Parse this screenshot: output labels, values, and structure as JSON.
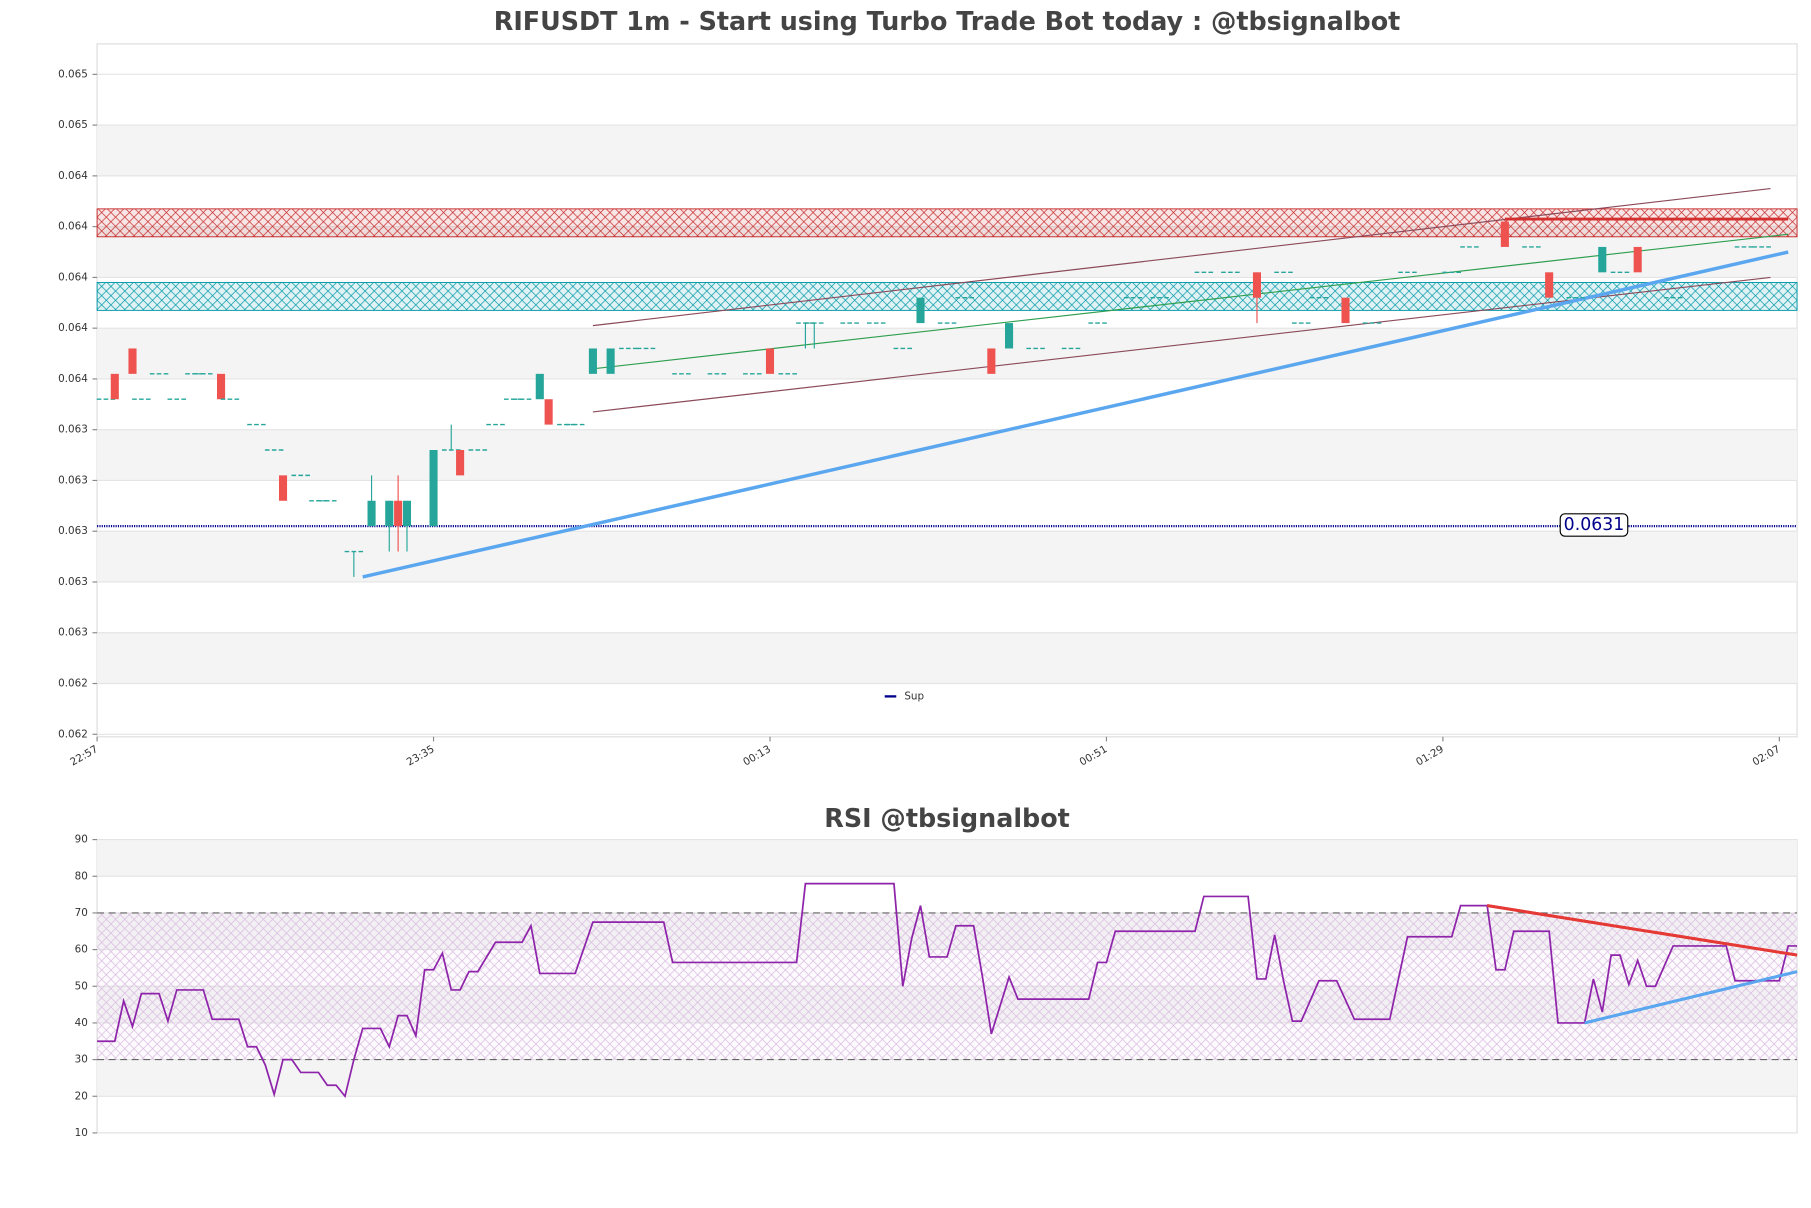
{
  "chart_data": [
    {
      "type": "candlestick",
      "title": "RIFUSDT 1m - Start using Turbo Trade Bot today : @tbsignalbot",
      "x": [
        1,
        2,
        4,
        5,
        7,
        9,
        11,
        12,
        14,
        15,
        18,
        20,
        21,
        23,
        25,
        26,
        29,
        31,
        33,
        34,
        35,
        38,
        40,
        41,
        43,
        45,
        47,
        48,
        50,
        51,
        53,
        54,
        56,
        58,
        60,
        62,
        66,
        70,
        74,
        76,
        78,
        80,
        81,
        85,
        88,
        91,
        93,
        96,
        98,
        101,
        103,
        106,
        110,
        113,
        117,
        120,
        125,
        128,
        131,
        134,
        136,
        138,
        141,
        144,
        148,
        153,
        155,
        159,
        162,
        164,
        167,
        170,
        172,
        174,
        178,
        186,
        188
      ],
      "open": [
        0.0636,
        0.0637,
        0.0638,
        0.0636,
        0.0637,
        0.0636,
        0.0637,
        0.0637,
        0.0637,
        0.0636,
        0.0635,
        0.0634,
        0.0633,
        0.0633,
        0.0632,
        0.0632,
        0.063,
        0.0631,
        0.0631,
        0.0632,
        0.0631,
        0.0631,
        0.0634,
        0.0634,
        0.0634,
        0.0635,
        0.0636,
        0.0636,
        0.0636,
        0.0636,
        0.0635,
        0.0635,
        0.0637,
        0.0637,
        0.0638,
        0.0638,
        0.0637,
        0.0637,
        0.0637,
        0.0638,
        0.0637,
        0.0639,
        0.0639,
        0.0639,
        0.0639,
        0.0638,
        0.0639,
        0.0639,
        0.064,
        0.0638,
        0.0638,
        0.0638,
        0.0638,
        0.0639,
        0.064,
        0.064,
        0.0641,
        0.0641,
        0.0641,
        0.0641,
        0.0639,
        0.064,
        0.064,
        0.0639,
        0.0641,
        0.0641,
        0.0642,
        0.0643,
        0.0642,
        0.0641,
        0.064,
        0.0641,
        0.0641,
        0.0642,
        0.064,
        0.0642,
        0.0642
      ],
      "high": [
        0.0636,
        0.0637,
        0.0638,
        0.0636,
        0.0637,
        0.0636,
        0.0637,
        0.0637,
        0.0637,
        0.0636,
        0.0635,
        0.0634,
        0.0633,
        0.0633,
        0.0632,
        0.0632,
        0.063,
        0.0633,
        0.0632,
        0.0633,
        0.0632,
        0.0634,
        0.0635,
        0.0634,
        0.0634,
        0.0635,
        0.0636,
        0.0636,
        0.0637,
        0.0636,
        0.0635,
        0.0635,
        0.0638,
        0.0638,
        0.0638,
        0.0638,
        0.0637,
        0.0637,
        0.0637,
        0.0638,
        0.0637,
        0.0639,
        0.0639,
        0.0639,
        0.0639,
        0.0638,
        0.064,
        0.0639,
        0.064,
        0.0638,
        0.0639,
        0.0638,
        0.0638,
        0.0639,
        0.064,
        0.064,
        0.0641,
        0.0641,
        0.0641,
        0.0641,
        0.0639,
        0.064,
        0.064,
        0.0639,
        0.0641,
        0.0641,
        0.0642,
        0.0643,
        0.0642,
        0.0641,
        0.064,
        0.0642,
        0.0641,
        0.0642,
        0.064,
        0.0642,
        0.0642
      ],
      "low": [
        0.0636,
        0.0636,
        0.0637,
        0.0636,
        0.0637,
        0.0636,
        0.0637,
        0.0637,
        0.0636,
        0.0636,
        0.0635,
        0.0634,
        0.0632,
        0.0633,
        0.0632,
        0.0632,
        0.0629,
        0.0631,
        0.063,
        0.063,
        0.063,
        0.0631,
        0.0634,
        0.0633,
        0.0634,
        0.0635,
        0.0636,
        0.0636,
        0.0636,
        0.0635,
        0.0635,
        0.0635,
        0.0637,
        0.0637,
        0.0638,
        0.0638,
        0.0637,
        0.0637,
        0.0637,
        0.0637,
        0.0637,
        0.0638,
        0.0638,
        0.0639,
        0.0639,
        0.0638,
        0.0639,
        0.0639,
        0.064,
        0.0637,
        0.0638,
        0.0638,
        0.0638,
        0.0639,
        0.064,
        0.064,
        0.0641,
        0.0641,
        0.0639,
        0.0641,
        0.0639,
        0.064,
        0.0639,
        0.0639,
        0.0641,
        0.0641,
        0.0642,
        0.0642,
        0.0642,
        0.064,
        0.064,
        0.0641,
        0.0641,
        0.0641,
        0.064,
        0.0642,
        0.0642
      ],
      "close": [
        0.0636,
        0.0636,
        0.0637,
        0.0636,
        0.0637,
        0.0636,
        0.0637,
        0.0637,
        0.0636,
        0.0636,
        0.0635,
        0.0634,
        0.0632,
        0.0633,
        0.0632,
        0.0632,
        0.063,
        0.0632,
        0.0632,
        0.0631,
        0.0632,
        0.0634,
        0.0634,
        0.0633,
        0.0634,
        0.0635,
        0.0636,
        0.0636,
        0.0637,
        0.0635,
        0.0635,
        0.0635,
        0.0638,
        0.0638,
        0.0638,
        0.0638,
        0.0637,
        0.0637,
        0.0637,
        0.0637,
        0.0637,
        0.0639,
        0.0639,
        0.0639,
        0.0639,
        0.0638,
        0.064,
        0.0639,
        0.064,
        0.0637,
        0.0639,
        0.0638,
        0.0638,
        0.0639,
        0.064,
        0.064,
        0.0641,
        0.0641,
        0.064,
        0.0641,
        0.0639,
        0.064,
        0.0639,
        0.0639,
        0.0641,
        0.0641,
        0.0642,
        0.0642,
        0.0642,
        0.064,
        0.064,
        0.0642,
        0.0641,
        0.0641,
        0.064,
        0.0642,
        0.0642
      ],
      "up_color": "#26a69a",
      "down_color": "#ef5350",
      "xlim": [
        0,
        192
      ],
      "xticks": [
        {
          "value": 0,
          "label": "22:57"
        },
        {
          "value": 38,
          "label": "23:35"
        },
        {
          "value": 76,
          "label": "00:13"
        },
        {
          "value": 114,
          "label": "00:51"
        },
        {
          "value": 152,
          "label": "01:29"
        },
        {
          "value": 190,
          "label": "02:07"
        }
      ],
      "ylim": [
        0.06227,
        0.065
      ],
      "yticks": [
        {
          "value": 0.06228,
          "label": "0.062"
        },
        {
          "value": 0.06248,
          "label": "0.062"
        },
        {
          "value": 0.06268,
          "label": "0.063"
        },
        {
          "value": 0.06288,
          "label": "0.063"
        },
        {
          "value": 0.06308,
          "label": "0.063"
        },
        {
          "value": 0.06328,
          "label": "0.063"
        },
        {
          "value": 0.06348,
          "label": "0.063"
        },
        {
          "value": 0.06368,
          "label": "0.064"
        },
        {
          "value": 0.06388,
          "label": "0.064"
        },
        {
          "value": 0.06408,
          "label": "0.064"
        },
        {
          "value": 0.06428,
          "label": "0.064"
        },
        {
          "value": 0.06448,
          "label": "0.064"
        },
        {
          "value": 0.06468,
          "label": "0.065"
        },
        {
          "value": 0.06488,
          "label": "0.065"
        }
      ],
      "grid": true,
      "zones": [
        {
          "lower": 0.06424,
          "upper": 0.06435,
          "color": "#c62828"
        },
        {
          "lower": 0.06395,
          "upper": 0.06406,
          "color": "#0097a7"
        }
      ],
      "lines": [
        {
          "x": [
            56,
            189
          ],
          "y": [
            0.06389,
            0.06443
          ],
          "color": "#8b4a5a",
          "width": 1
        },
        {
          "x": [
            56,
            189
          ],
          "y": [
            0.06355,
            0.06408
          ],
          "color": "#8b4a5a",
          "width": 1
        },
        {
          "x": [
            56,
            191
          ],
          "y": [
            0.06372,
            0.06425
          ],
          "color": "#2e9e4f",
          "width": 1
        },
        {
          "x": [
            30,
            191
          ],
          "y": [
            0.0629,
            0.06418
          ],
          "color": "#5aa6ef",
          "width": 3
        },
        {
          "x": [
            159,
            191
          ],
          "y": [
            0.06431,
            0.06431
          ],
          "color": "#d32f2f",
          "width": 2.5
        }
      ],
      "level": {
        "name": "Sup",
        "value": 0.0631,
        "label": "0.0631",
        "color": "#00008b"
      },
      "legend": "lower center"
    },
    {
      "type": "line",
      "title": "RSI @tbsignalbot",
      "x": [
        0,
        2,
        3,
        4,
        5,
        7,
        8,
        9,
        12,
        13,
        16,
        17,
        18,
        19,
        20,
        21,
        22,
        23,
        25,
        26,
        27,
        28,
        29,
        30,
        32,
        33,
        34,
        35,
        36,
        37,
        38,
        39,
        40,
        41,
        42,
        43,
        45,
        48,
        49,
        50,
        54,
        56,
        64,
        65,
        79,
        80,
        90,
        91,
        92,
        93,
        94,
        96,
        97,
        99,
        100,
        101,
        103,
        104,
        112,
        113,
        114,
        115,
        124,
        125,
        130,
        131,
        132,
        133,
        134,
        135,
        136,
        138,
        140,
        142,
        146,
        148,
        153,
        154,
        157,
        158,
        159,
        160,
        164,
        165,
        168,
        169,
        170,
        171,
        172,
        173,
        174,
        175,
        176,
        178,
        184,
        185,
        190,
        191,
        192
      ],
      "values": [
        35,
        35,
        46,
        39,
        48,
        48,
        40.5,
        49,
        49,
        41,
        41,
        33.5,
        33.5,
        28.5,
        20.5,
        30,
        30,
        26.5,
        26.5,
        23,
        23,
        20,
        30,
        38.5,
        38.5,
        33.5,
        42,
        42,
        36.5,
        54.5,
        54.5,
        59,
        49,
        49,
        54,
        54,
        62,
        62,
        66.5,
        53.5,
        53.5,
        67.5,
        67.5,
        56.5,
        56.5,
        78,
        78,
        50,
        63,
        72,
        58,
        58,
        66.5,
        66.5,
        52.5,
        37,
        52.5,
        46.5,
        46.5,
        56.5,
        56.5,
        65,
        65,
        74.5,
        74.5,
        52,
        52,
        64,
        51.5,
        40.5,
        40.5,
        51.5,
        51.5,
        41,
        41,
        63.5,
        63.5,
        72,
        72,
        54.5,
        54.5,
        65,
        65,
        40,
        40,
        52,
        43,
        58.5,
        58.5,
        50.5,
        57,
        50,
        50,
        61,
        61,
        51.5,
        51.5,
        61,
        61
      ],
      "color": "#8e24aa",
      "xlim": [
        0,
        192
      ],
      "ylim": [
        10,
        90
      ],
      "yticks": [
        10,
        20,
        30,
        40,
        50,
        60,
        70,
        80,
        90
      ],
      "grid": true,
      "hlines": [
        70,
        30
      ],
      "hatch_color": "#d9b8e0",
      "lines": [
        {
          "x": [
            157,
            192
          ],
          "y": [
            72,
            58.5
          ],
          "color": "#e53935",
          "width": 2.5
        },
        {
          "x": [
            168,
            192
          ],
          "y": [
            40,
            54
          ],
          "color": "#5aa6ef",
          "width": 2.5
        }
      ]
    }
  ]
}
